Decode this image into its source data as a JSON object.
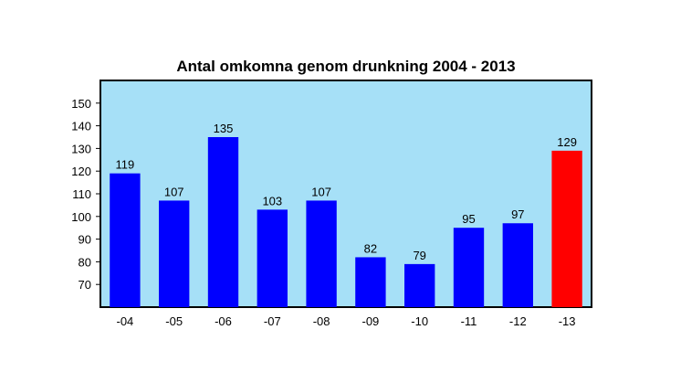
{
  "chart_data": {
    "type": "bar",
    "title": "Antal omkomna genom drunkning 2004 - 2013",
    "xlabel": "",
    "ylabel": "",
    "categories": [
      "-04",
      "-05",
      "-06",
      "-07",
      "-08",
      "-09",
      "-10",
      "-11",
      "-12",
      "-13"
    ],
    "values": [
      119,
      107,
      135,
      103,
      107,
      82,
      79,
      95,
      97,
      129
    ],
    "data_labels": [
      "119",
      "107",
      "135",
      "103",
      "107",
      "82",
      "79",
      "95",
      "97",
      "129"
    ],
    "ylim": [
      60,
      160
    ],
    "yticks": [
      70,
      80,
      90,
      100,
      110,
      120,
      130,
      140,
      150
    ],
    "grid": false,
    "legend": "none",
    "colors": {
      "plot_background": "#a6e0f7",
      "bar": "#0000ff",
      "highlight_bar": "#ff0000",
      "highlight_index": 9
    }
  }
}
